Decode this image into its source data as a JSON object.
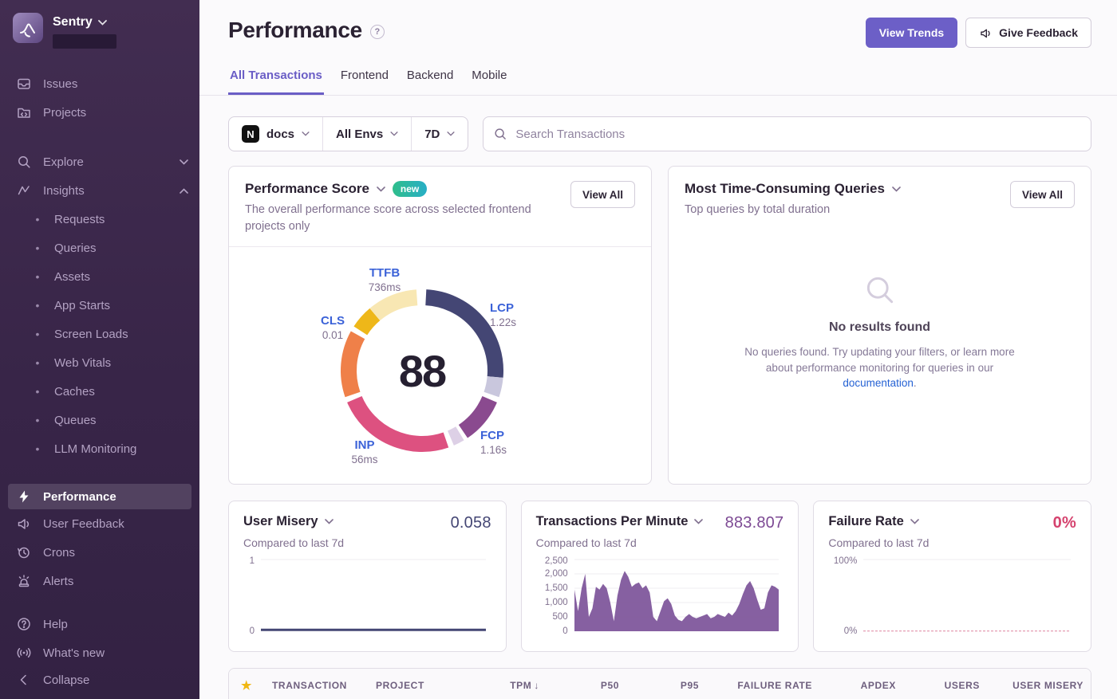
{
  "sidebar": {
    "org": "Sentry",
    "primary": [
      {
        "label": "Issues"
      },
      {
        "label": "Projects"
      }
    ],
    "explore": {
      "label": "Explore"
    },
    "insights": {
      "label": "Insights"
    },
    "insights_items": [
      "Requests",
      "Queries",
      "Assets",
      "App Starts",
      "Screen Loads",
      "Web Vitals",
      "Caches",
      "Queues",
      "LLM Monitoring"
    ],
    "tools": [
      "Performance",
      "User Feedback",
      "Crons",
      "Alerts"
    ],
    "support": [
      "Help",
      "What's new"
    ],
    "collapse": "Collapse"
  },
  "header": {
    "title": "Performance",
    "view_trends": "View Trends",
    "give_feedback": "Give Feedback"
  },
  "tabs": [
    {
      "label": "All Transactions",
      "active": true
    },
    {
      "label": "Frontend",
      "active": false
    },
    {
      "label": "Backend",
      "active": false
    },
    {
      "label": "Mobile",
      "active": false
    }
  ],
  "filters": {
    "project": "docs",
    "project_icon": "N",
    "env": "All Envs",
    "period": "7D",
    "search_placeholder": "Search Transactions"
  },
  "cards": {
    "performance_score": {
      "title": "Performance Score",
      "badge": "new",
      "description": "The overall performance score across selected frontend projects only",
      "view_all": "View All"
    },
    "queries": {
      "title": "Most Time-Consuming Queries",
      "subtitle": "Top queries by total duration",
      "view_all": "View All",
      "empty": {
        "title": "No results found",
        "text_before": "No queries found. Try updating your filters, or learn more about performance monitoring for queries in our ",
        "link": "documentation",
        "text_after": "."
      }
    },
    "user_misery": {
      "title": "User Misery",
      "subtitle": "Compared to last 7d",
      "value": "0.058"
    },
    "tpm": {
      "title": "Transactions Per Minute",
      "subtitle": "Compared to last 7d",
      "value": "883.807"
    },
    "failure_rate": {
      "title": "Failure Rate",
      "subtitle": "Compared to last 7d",
      "value": "0%"
    }
  },
  "table": {
    "sort_column": "TPM",
    "sort_direction": "desc",
    "columns": [
      "TRANSACTION",
      "PROJECT",
      "TPM",
      "P50",
      "P95",
      "FAILURE RATE",
      "APDEX",
      "USERS",
      "USER MISERY"
    ]
  },
  "colors": {
    "accent_purple": "#6c5fc7",
    "link_blue": "#2562d4",
    "metric_label_blue": "#3b62d8",
    "navy": "#444674",
    "chart_purple": "#7c5299",
    "pink": "#d5426e",
    "badge_gradient": [
      "#2fbe8b",
      "#28aec6"
    ],
    "star_gold": "#f0b712"
  },
  "chart_data": {
    "performance_ring": {
      "type": "donut",
      "score": 88,
      "metrics": [
        {
          "key": "ttfb",
          "label": "TTFB",
          "value": "736ms"
        },
        {
          "key": "lcp",
          "label": "LCP",
          "value": "1.22s"
        },
        {
          "key": "cls",
          "label": "CLS",
          "value": "0.01"
        },
        {
          "key": "inp",
          "label": "INP",
          "value": "56ms"
        },
        {
          "key": "fcp",
          "label": "FCP",
          "value": "1.16s"
        }
      ],
      "segments": [
        {
          "metric": "lcp",
          "color": "#444674",
          "start": 3,
          "end": 95
        },
        {
          "metric": "lcp-remainder",
          "color": "#c9c7dd",
          "start": 95,
          "end": 109
        },
        {
          "metric": "fcp",
          "color": "#8a4a8f",
          "start": 113,
          "end": 146
        },
        {
          "metric": "fcp-remainder",
          "color": "#ddd0e6",
          "start": 149,
          "end": 157
        },
        {
          "metric": "inp",
          "color": "#dd5180",
          "start": 161,
          "end": 247
        },
        {
          "metric": "cls",
          "color": "#ef8049",
          "start": 251,
          "end": 299
        },
        {
          "metric": "ttfb",
          "color": "#eeb719",
          "start": 303,
          "end": 320
        },
        {
          "metric": "ttfb-remainder",
          "color": "#f8e7b3",
          "start": 320,
          "end": 356
        }
      ]
    },
    "user_misery": {
      "type": "line",
      "color": "#444674",
      "stroke_width": 3,
      "dashed": false,
      "ylim": [
        0,
        1
      ],
      "grid_values": [
        1
      ],
      "y_ticks": [
        "1",
        "0"
      ],
      "values": [
        0.02,
        0.02,
        0.02,
        0.02,
        0.02,
        0.02,
        0.02,
        0.02,
        0.02,
        0.02,
        0.02,
        0.02,
        0.02,
        0.02,
        0.02,
        0.02,
        0.02,
        0.02,
        0.02,
        0.02,
        0.02,
        0.02,
        0.02,
        0.02
      ]
    },
    "tpm": {
      "type": "area",
      "color": "#7c5299",
      "ylim": [
        0,
        2500
      ],
      "grid_values": [
        500,
        1000,
        1500,
        2000,
        2500
      ],
      "y_ticks": [
        "2,500",
        "2,000",
        "1,500",
        "1,000",
        "500",
        "0"
      ],
      "values": [
        1450,
        700,
        1500,
        2000,
        500,
        800,
        1550,
        1450,
        1650,
        1500,
        1000,
        350,
        1250,
        1800,
        2100,
        1900,
        1550,
        1650,
        1700,
        1500,
        1600,
        1350,
        500,
        350,
        700,
        1050,
        1150,
        950,
        550,
        400,
        350,
        500,
        600,
        500,
        450,
        500,
        550,
        600,
        450,
        500,
        600,
        550,
        500,
        650,
        550,
        700,
        950,
        1300,
        1600,
        1750,
        1500,
        1100,
        750,
        800,
        1350,
        1600,
        1550,
        1450
      ]
    },
    "failure_rate": {
      "type": "line",
      "color": "#e8a9bc",
      "stroke_width": 1.5,
      "dashed": true,
      "ylim": [
        0,
        100
      ],
      "grid_values": [
        100
      ],
      "y_ticks": [
        "100%",
        "0%"
      ],
      "values": [
        0.4,
        0.4,
        0.4,
        0.4,
        0.4,
        0.4,
        0.4,
        0.4,
        0.4,
        0.4,
        0.4,
        0.4,
        0.4,
        0.4,
        0.4,
        0.4,
        0.4,
        0.4,
        0.4,
        0.4,
        0.4,
        0.4,
        0.4,
        0.4
      ]
    }
  }
}
